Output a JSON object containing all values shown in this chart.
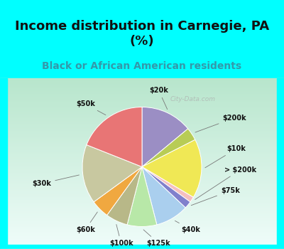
{
  "title": "Income distribution in Carnegie, PA\n(%)",
  "subtitle": "Black or African American residents",
  "title_fontsize": 13,
  "subtitle_fontsize": 10,
  "labels": [
    "$20k",
    "$200k",
    "$10k",
    "> $200k",
    "$75k",
    "$40k",
    "$125k",
    "$100k",
    "$60k",
    "$30k",
    "$50k"
  ],
  "values": [
    14,
    3.5,
    16,
    1.5,
    2,
    9,
    8,
    6,
    5,
    16,
    19
  ],
  "colors": [
    "#9b8ec4",
    "#b8cc55",
    "#f0e855",
    "#f5bfbf",
    "#8080cc",
    "#aacfee",
    "#b8e8a8",
    "#b8b888",
    "#f0a840",
    "#c8c8a0",
    "#e87575"
  ],
  "watermark": "City-Data.com",
  "header_color": "#00ffff",
  "chart_bg_color_top": "#c5e8d5",
  "chart_bg_color_bottom": "#dff5e8",
  "border_color": "#00dddd"
}
